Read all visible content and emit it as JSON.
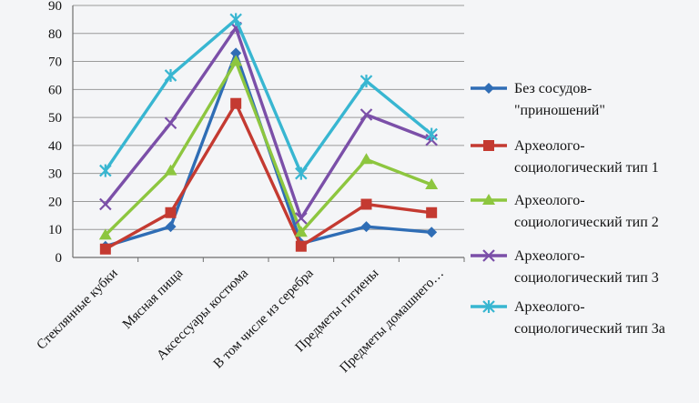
{
  "chart_data": {
    "type": "line",
    "title": "",
    "xlabel": "",
    "ylabel": "",
    "ylim": [
      0,
      90
    ],
    "yticks": [
      0,
      10,
      20,
      30,
      40,
      50,
      60,
      70,
      80,
      90
    ],
    "grid": true,
    "legend_position": "right",
    "categories": [
      "Стеклянные кубки",
      "Мясная пища",
      "Аксессуары костюма",
      "В том числе из серебра",
      "Предметы гигиены",
      "Предметы домашнего…"
    ],
    "series": [
      {
        "name": "Без сосудов- \"приношений\"",
        "legend_lines": [
          "Без сосудов-",
          "\"приношений\""
        ],
        "color": "#2f6db5",
        "marker": "diamond",
        "values": [
          4,
          11,
          73,
          5,
          11,
          9
        ]
      },
      {
        "name": "Археолого- социологический тип 1",
        "legend_lines": [
          "Археолого-",
          "социологический тип 1"
        ],
        "color": "#c43a31",
        "marker": "square",
        "values": [
          3,
          16,
          55,
          4,
          19,
          16
        ]
      },
      {
        "name": "Археолого- социологический тип 2",
        "legend_lines": [
          "Археолого-",
          "социологический тип 2"
        ],
        "color": "#8dc63f",
        "marker": "triangle",
        "values": [
          8,
          31,
          70,
          9,
          35,
          26
        ]
      },
      {
        "name": "Археолого- социологический тип 3",
        "legend_lines": [
          "Археолого-",
          "социологический тип 3"
        ],
        "color": "#7b4fa8",
        "marker": "x",
        "values": [
          19,
          48,
          82,
          14,
          51,
          42
        ]
      },
      {
        "name": "Археолого- социологический тип 3а",
        "legend_lines": [
          "Археолого-",
          "социологический тип 3а"
        ],
        "color": "#38b6d1",
        "marker": "star",
        "values": [
          31,
          65,
          85,
          30,
          63,
          44
        ]
      }
    ]
  }
}
